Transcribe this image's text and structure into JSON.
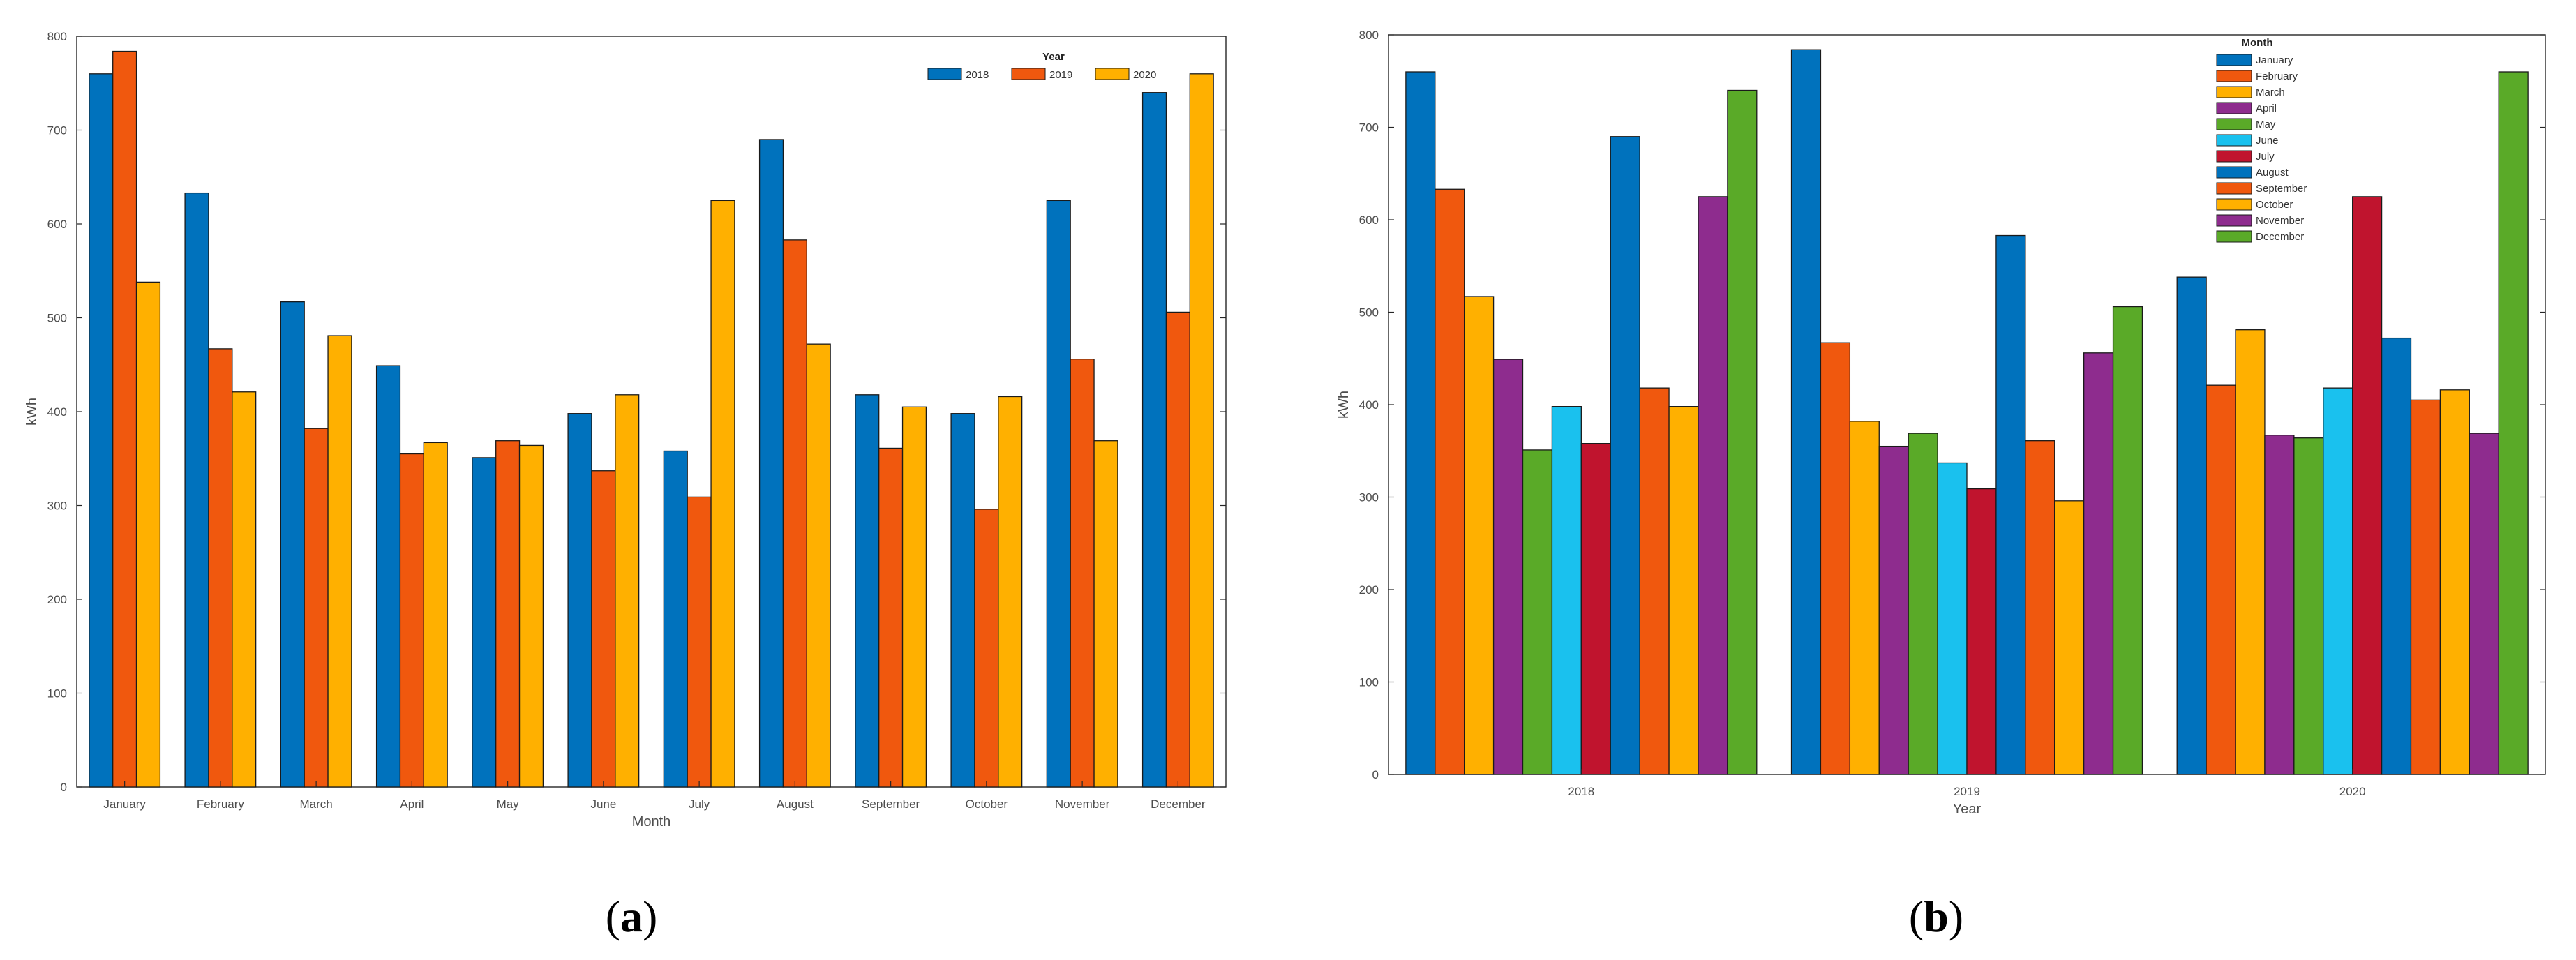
{
  "chart_data": [
    {
      "type": "bar",
      "panel": "a",
      "caption": "(a)",
      "caption_letter": "a",
      "categories": [
        "January",
        "February",
        "March",
        "April",
        "May",
        "June",
        "July",
        "August",
        "September",
        "October",
        "November",
        "December"
      ],
      "series": [
        {
          "name": "2018",
          "color": "#0072BD",
          "values": [
            760,
            633,
            517,
            449,
            351,
            398,
            358,
            690,
            418,
            398,
            625,
            740
          ]
        },
        {
          "name": "2019",
          "color": "#F0580E",
          "values": [
            784,
            467,
            382,
            355,
            369,
            337,
            309,
            583,
            361,
            296,
            456,
            506
          ]
        },
        {
          "name": "2020",
          "color": "#FFB000",
          "values": [
            538,
            421,
            481,
            367,
            364,
            418,
            625,
            472,
            405,
            416,
            369,
            760
          ]
        }
      ],
      "title": "",
      "xlabel": "Month",
      "ylabel": "kWh",
      "ylim": [
        0,
        800
      ],
      "yticks": [
        "0",
        "100",
        "200",
        "300",
        "400",
        "500",
        "600",
        "700",
        "800"
      ],
      "legend_title": "Year",
      "legend_position": "top-right",
      "legend_orientation": "horizontal",
      "grid": false
    },
    {
      "type": "bar",
      "panel": "b",
      "caption": "(b)",
      "caption_letter": "b",
      "categories": [
        "2018",
        "2019",
        "2020"
      ],
      "series": [
        {
          "name": "January",
          "color": "#0072BD",
          "values": [
            760,
            784,
            538
          ]
        },
        {
          "name": "February",
          "color": "#F0580E",
          "values": [
            633,
            467,
            421
          ]
        },
        {
          "name": "March",
          "color": "#FFB000",
          "values": [
            517,
            382,
            481
          ]
        },
        {
          "name": "April",
          "color": "#8E2C8E",
          "values": [
            449,
            355,
            367
          ]
        },
        {
          "name": "May",
          "color": "#5AAA28",
          "values": [
            351,
            369,
            364
          ]
        },
        {
          "name": "June",
          "color": "#1AC1EE",
          "values": [
            398,
            337,
            418
          ]
        },
        {
          "name": "July",
          "color": "#C0142E",
          "values": [
            358,
            309,
            625
          ]
        },
        {
          "name": "August",
          "color": "#0072BD",
          "values": [
            690,
            583,
            472
          ]
        },
        {
          "name": "September",
          "color": "#F0580E",
          "values": [
            418,
            361,
            405
          ]
        },
        {
          "name": "October",
          "color": "#FFB000",
          "values": [
            398,
            296,
            416
          ]
        },
        {
          "name": "November",
          "color": "#8E2C8E",
          "values": [
            625,
            456,
            369
          ]
        },
        {
          "name": "December",
          "color": "#5AAA28",
          "values": [
            740,
            506,
            760
          ]
        }
      ],
      "title": "",
      "xlabel": "Year",
      "ylabel": "kWh",
      "ylim": [
        0,
        800
      ],
      "yticks": [
        "0",
        "100",
        "200",
        "300",
        "400",
        "500",
        "600",
        "700",
        "800"
      ],
      "legend_title": "Month",
      "legend_position": "top-right",
      "legend_orientation": "vertical",
      "grid": false
    }
  ]
}
